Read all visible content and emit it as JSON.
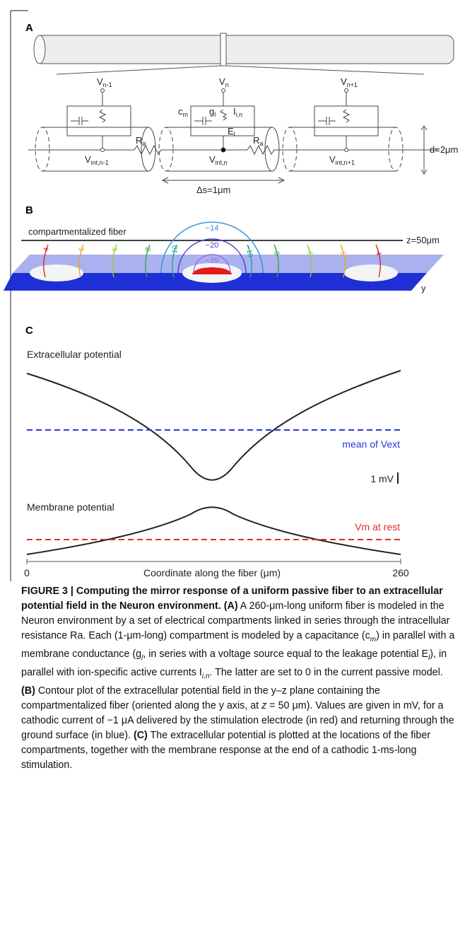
{
  "panel_a": {
    "label": "A",
    "v_nodes": [
      [
        "V",
        "n-1"
      ],
      [
        "V",
        "n"
      ],
      [
        "V",
        "n+1"
      ]
    ],
    "c_m": [
      "c",
      "m"
    ],
    "g_l": [
      "g",
      "l"
    ],
    "i_in": [
      "I",
      "i,n"
    ],
    "e_l": [
      "E",
      "l"
    ],
    "r_a": [
      "R",
      "a"
    ],
    "v_int": [
      [
        "V",
        "int,n-1"
      ],
      [
        "V",
        "int,n"
      ],
      [
        "V",
        "int,n+1"
      ]
    ],
    "diameter": "d=2μm",
    "spacing": "Δs=1μm"
  },
  "panel_b": {
    "label": "B",
    "fiber_label": "compartmentalized fiber",
    "fiber_z": "z=50μm",
    "axis_label": "y",
    "contour_labels": [
      "−4",
      "−5",
      "−6",
      "−8",
      "−10",
      "−14",
      "−20",
      "−35"
    ]
  },
  "panel_c": {
    "label": "C",
    "extracellular_title": "Extracellular potential",
    "mean_label": "mean of Vext",
    "scale_bar": "1 mV",
    "membrane_title": "Membrane potential",
    "rest_label": "Vm at rest",
    "x_axis_label": "Coordinate along the fiber (μm)",
    "xticks": [
      0,
      260
    ]
  },
  "caption": [
    "FIGURE 3 | Computing the mirror response of a uniform passive fiber to an extracellular potential field in the Neuron environment.",
    "(A)",
    " A 260-μm-long uniform fiber is modeled in the Neuron environment by a set of electrical compartments linked in series through the intracellular resistance Ra. Each (1-μm-long) compartment is modeled by a capacitance (c",
    "m",
    ") in parallel with a membrane conductance (g",
    "l",
    ", in series with a voltage source equal to the leakage potential E",
    "l",
    "), in parallel with ion-specific active currents I",
    "i,n",
    ". The latter are set to 0 in the current passive model.",
    "(B)",
    " Contour plot of the extracellular potential field in the y–z plane containing the compartmentalized fiber (oriented along the y axis, at ",
    "z",
    " = 50 μm). Values are given in mV, for a cathodic current of −1 μA delivered by the stimulation electrode (in red) and returning through the ground surface (in blue). ",
    "(C)",
    " The extracellular potential is plotted at the locations of the fiber compartments, together with the membrane response at the end of a cathodic 1-ms-long stimulation."
  ]
}
